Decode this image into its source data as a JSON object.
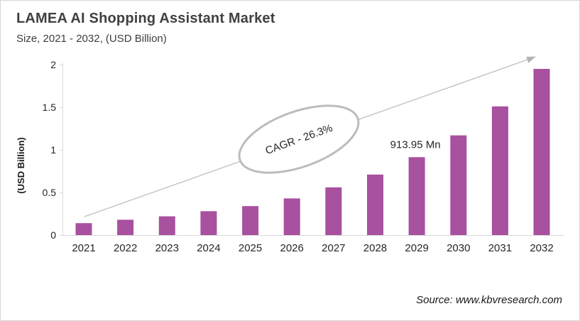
{
  "header": {
    "title": "LAMEA AI Shopping Assistant Market",
    "subtitle": "Size, 2021 - 2032, (USD Billion)"
  },
  "chart_data": {
    "type": "bar",
    "categories": [
      "2021",
      "2022",
      "2023",
      "2024",
      "2025",
      "2026",
      "2027",
      "2028",
      "2029",
      "2030",
      "2031",
      "2032"
    ],
    "values": [
      0.14,
      0.18,
      0.22,
      0.28,
      0.34,
      0.43,
      0.56,
      0.71,
      0.914,
      1.17,
      1.51,
      1.95
    ],
    "title": "LAMEA AI Shopping Assistant Market Size, 2021 - 2032, (USD Billion)",
    "xlabel": "",
    "ylabel": "(USD Billion)",
    "ylim": [
      0,
      2
    ],
    "yticks": [
      0,
      0.5,
      1,
      1.5,
      2
    ],
    "ytick_labels": [
      "0",
      "0.5",
      "1",
      "1.5",
      "2"
    ],
    "grid": false,
    "legend": false,
    "annotation": {
      "text": "913.95 Mn",
      "category": "2029"
    },
    "cagr": {
      "label": "CAGR - 26.3%"
    },
    "trend_arrow": true
  },
  "footer": {
    "source": "Source: www.kbvresearch.com"
  },
  "colors": {
    "bar": "#a8519f",
    "axis_line": "#d9d9d9",
    "axis_text": "#262626",
    "arrow": "#bfbfbf",
    "arrow_head": "#b3b3b3",
    "ellipse_stroke": "#bcbcbc",
    "ellipse_fill": "#ffffff",
    "annotation_text": "#262626"
  }
}
